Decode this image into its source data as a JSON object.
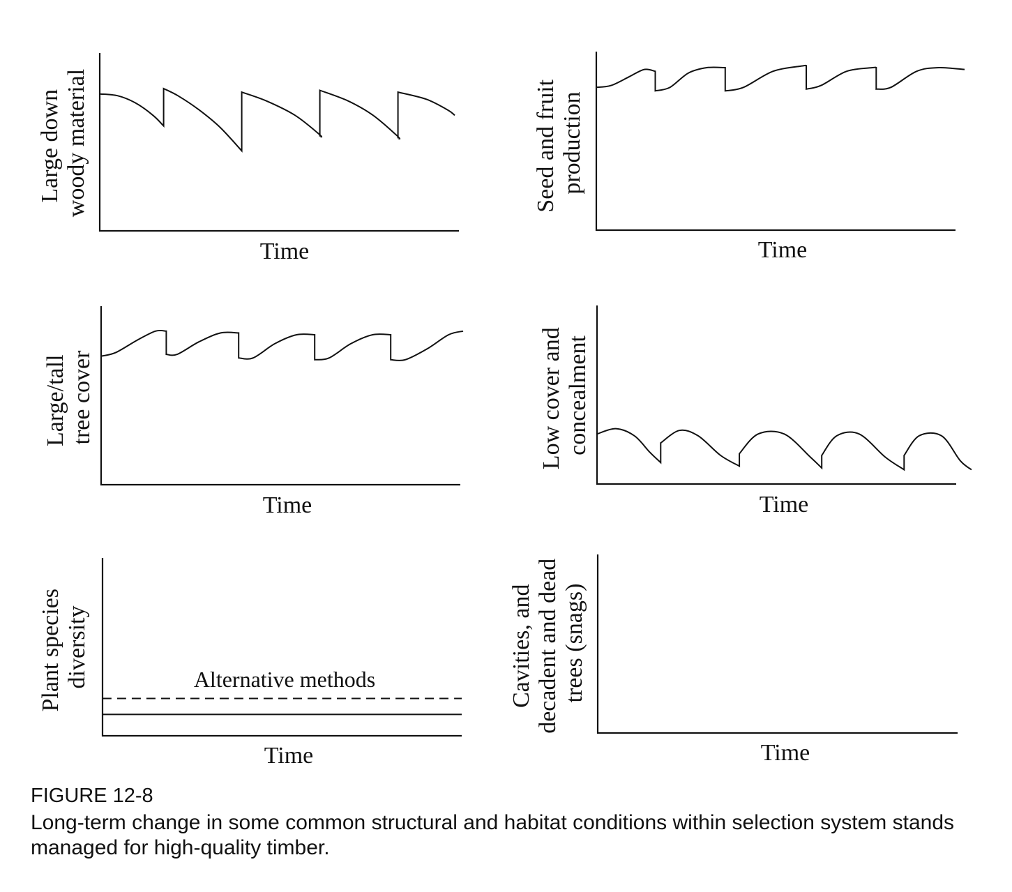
{
  "chart_data": [
    {
      "type": "line",
      "ylabel": [
        "Large down",
        "woody material"
      ],
      "xlabel": "Time",
      "ylim": [
        0,
        100
      ],
      "series": [
        {
          "segments": [
            [
              [
                0,
                77
              ],
              [
                5,
                76
              ],
              [
                10,
                72
              ],
              [
                15,
                65
              ],
              [
                18,
                59
              ]
            ],
            [
              [
                18,
                80
              ],
              [
                22,
                76
              ],
              [
                28,
                68
              ],
              [
                34,
                58
              ],
              [
                40,
                45
              ]
            ],
            [
              [
                40,
                78
              ],
              [
                47,
                73
              ],
              [
                55,
                65
              ],
              [
                62,
                54
              ],
              [
                62,
                53
              ]
            ],
            [
              [
                62,
                79
              ],
              [
                70,
                73
              ],
              [
                77,
                65
              ],
              [
                84,
                53
              ],
              [
                84,
                52
              ]
            ],
            [
              [
                84,
                78
              ],
              [
                92,
                74
              ],
              [
                98,
                68
              ],
              [
                100,
                65
              ]
            ]
          ]
        }
      ]
    },
    {
      "type": "line",
      "ylabel": [
        "Seed and fruit",
        "production"
      ],
      "xlabel": "Time",
      "ylim": [
        0,
        100
      ],
      "series": [
        {
          "segments": [
            [
              [
                0,
                80
              ],
              [
                4,
                81
              ],
              [
                9,
                86
              ],
              [
                13,
                90
              ],
              [
                16,
                89
              ]
            ],
            [
              [
                16,
                78
              ],
              [
                20,
                80
              ],
              [
                25,
                88
              ],
              [
                30,
                91
              ],
              [
                35,
                91
              ]
            ],
            [
              [
                35,
                78
              ],
              [
                40,
                80
              ],
              [
                48,
                89
              ],
              [
                56,
                92
              ],
              [
                57,
                92
              ]
            ],
            [
              [
                57,
                79
              ],
              [
                61,
                81
              ],
              [
                68,
                89
              ],
              [
                75,
                91
              ],
              [
                76,
                91
              ]
            ],
            [
              [
                76,
                79
              ],
              [
                80,
                80
              ],
              [
                87,
                89
              ],
              [
                93,
                91
              ],
              [
                100,
                90
              ]
            ]
          ]
        }
      ]
    },
    {
      "type": "line",
      "ylabel": [
        "Large/tall",
        "tree cover"
      ],
      "xlabel": "Time",
      "ylim": [
        0,
        100
      ],
      "series": [
        {
          "segments": [
            [
              [
                0,
                72
              ],
              [
                4,
                74
              ],
              [
                10,
                81
              ],
              [
                15,
                86
              ],
              [
                18,
                86
              ]
            ],
            [
              [
                18,
                73
              ],
              [
                21,
                73
              ],
              [
                27,
                80
              ],
              [
                33,
                85
              ],
              [
                38,
                85
              ]
            ],
            [
              [
                38,
                71
              ],
              [
                42,
                71
              ],
              [
                48,
                79
              ],
              [
                54,
                84
              ],
              [
                59,
                84
              ]
            ],
            [
              [
                59,
                70
              ],
              [
                63,
                71
              ],
              [
                69,
                79
              ],
              [
                75,
                84
              ],
              [
                80,
                84
              ]
            ],
            [
              [
                80,
                70
              ],
              [
                84,
                70
              ],
              [
                90,
                76
              ],
              [
                96,
                84
              ],
              [
                100,
                86
              ]
            ]
          ]
        }
      ]
    },
    {
      "type": "line",
      "ylabel": [
        "Low cover and",
        "concealment"
      ],
      "xlabel": "Time",
      "ylim": [
        0,
        100
      ],
      "series": [
        {
          "segments": [
            [
              [
                0,
                28
              ],
              [
                5,
                31
              ],
              [
                10,
                27
              ],
              [
                14,
                18
              ],
              [
                17,
                12
              ]
            ],
            [
              [
                17,
                23
              ],
              [
                22,
                30
              ],
              [
                27,
                27
              ],
              [
                33,
                16
              ],
              [
                38,
                10
              ]
            ],
            [
              [
                38,
                17
              ],
              [
                43,
                28
              ],
              [
                50,
                28
              ],
              [
                57,
                15
              ],
              [
                60,
                9
              ]
            ],
            [
              [
                60,
                16
              ],
              [
                64,
                27
              ],
              [
                70,
                28
              ],
              [
                77,
                15
              ],
              [
                82,
                8
              ]
            ],
            [
              [
                82,
                16
              ],
              [
                86,
                27
              ],
              [
                92,
                27
              ],
              [
                97,
                13
              ],
              [
                100,
                8
              ]
            ]
          ]
        }
      ]
    },
    {
      "type": "line",
      "ylabel": [
        "Plant species",
        "diversity"
      ],
      "xlabel": "Time",
      "ylim": [
        0,
        100
      ],
      "annotations": [
        "Alternative methods"
      ],
      "series": [
        {
          "style": "dashed",
          "segments": [
            [
              [
                0,
                21
              ],
              [
                100,
                21
              ]
            ]
          ]
        },
        {
          "style": "solid",
          "segments": [
            [
              [
                0,
                12
              ],
              [
                100,
                12
              ]
            ]
          ]
        }
      ]
    },
    {
      "type": "line",
      "ylabel": [
        "Cavities, and",
        "decadent and dead",
        "trees (snags)"
      ],
      "xlabel": "Time",
      "ylim": [
        0,
        100
      ],
      "series": []
    }
  ],
  "caption": {
    "figure_id": "FIGURE 12-8",
    "text": "Long-term change in some common structural and habitat conditions within selection system stands managed for high-quality timber."
  }
}
